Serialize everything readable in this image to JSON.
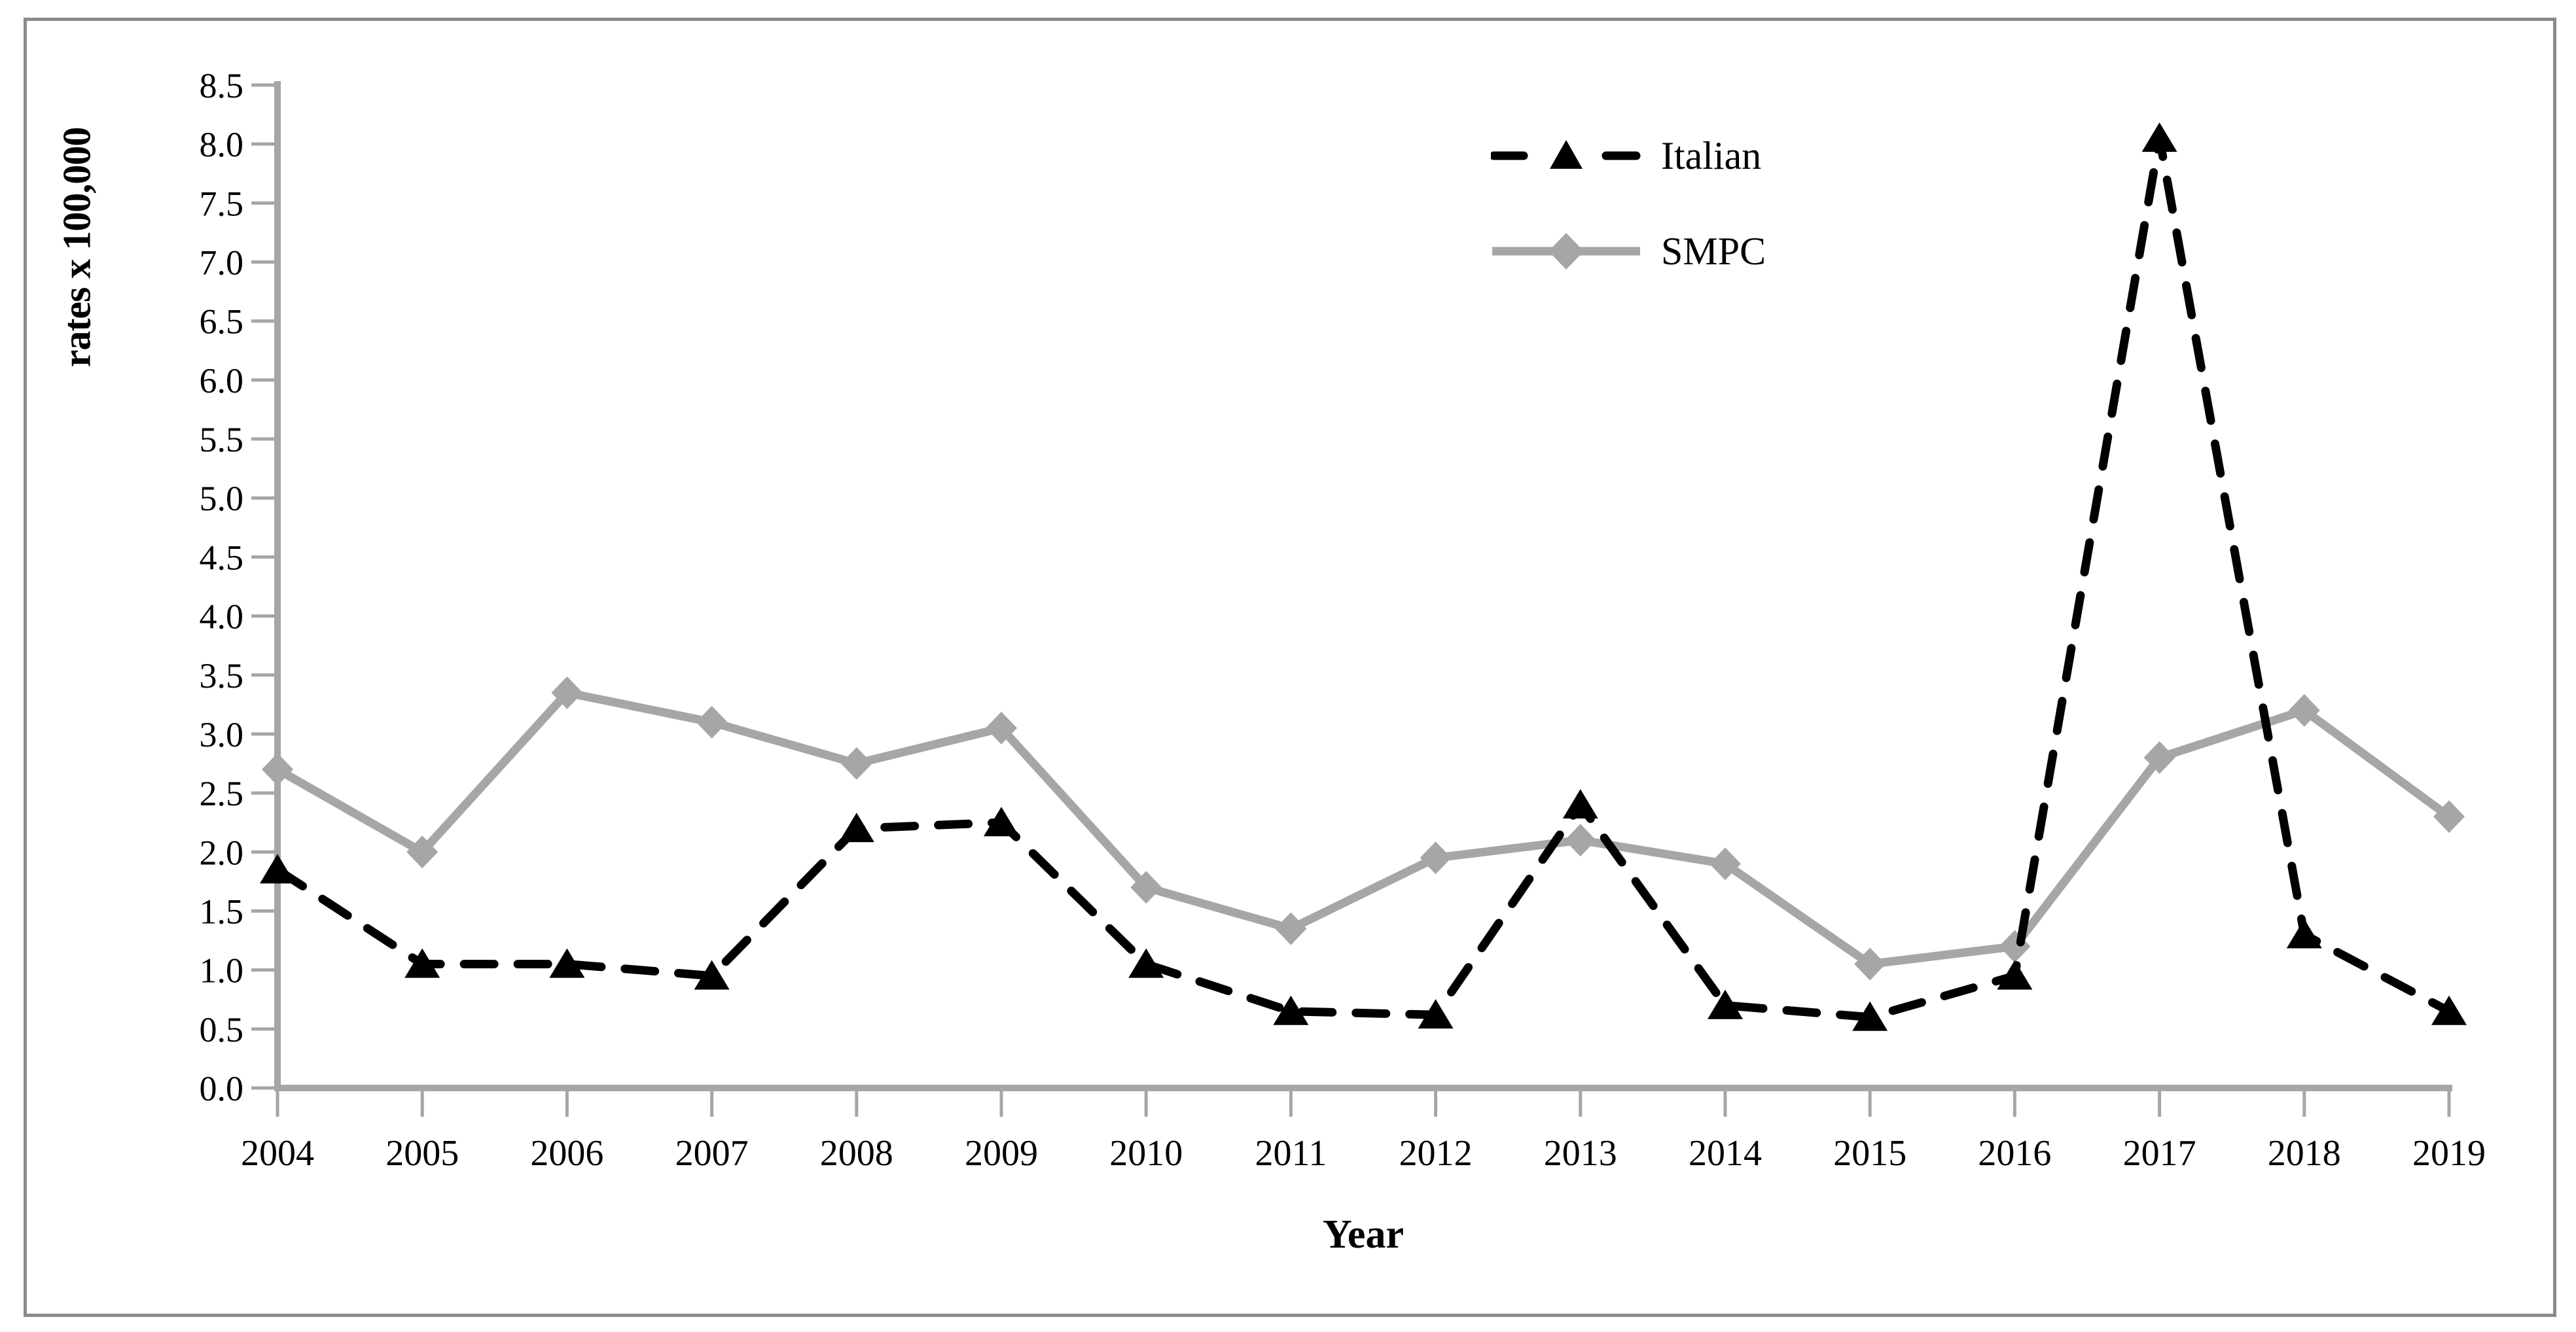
{
  "figure": {
    "frame_color": "#8a8a8a",
    "background": "#ffffff",
    "axis_color": "#a6a6a6",
    "text_color": "#000000"
  },
  "chart_data": {
    "type": "line",
    "title": "",
    "xlabel": "Year",
    "ylabel": "rates x 100,000",
    "categories": [
      "2004",
      "2005",
      "2006",
      "2007",
      "2008",
      "2009",
      "2010",
      "2011",
      "2012",
      "2013",
      "2014",
      "2015",
      "2016",
      "2017",
      "2018",
      "2019"
    ],
    "y_ticks": [
      "0.0",
      "0.5",
      "1.0",
      "1.5",
      "2.0",
      "2.5",
      "3.0",
      "3.5",
      "4.0",
      "4.5",
      "5.0",
      "5.5",
      "6.0",
      "6.5",
      "7.0",
      "7.5",
      "8.0",
      "8.5"
    ],
    "ylim": [
      0,
      8.5
    ],
    "y_tick_step": 0.5,
    "grid": false,
    "legend_position": "inside-top-right",
    "series": [
      {
        "name": "Italian",
        "color": "#000000",
        "line_style": "dashed",
        "marker": "triangle",
        "values": [
          1.85,
          1.05,
          1.05,
          0.95,
          2.2,
          2.25,
          1.05,
          0.65,
          0.62,
          2.4,
          0.7,
          0.6,
          0.95,
          8.05,
          1.3,
          0.65
        ]
      },
      {
        "name": "SMPC",
        "color": "#a6a6a6",
        "line_style": "solid",
        "marker": "diamond",
        "values": [
          2.7,
          2.0,
          3.35,
          3.1,
          2.75,
          3.05,
          1.7,
          1.35,
          1.95,
          2.1,
          1.9,
          1.05,
          1.2,
          2.8,
          3.2,
          2.3
        ]
      }
    ]
  }
}
